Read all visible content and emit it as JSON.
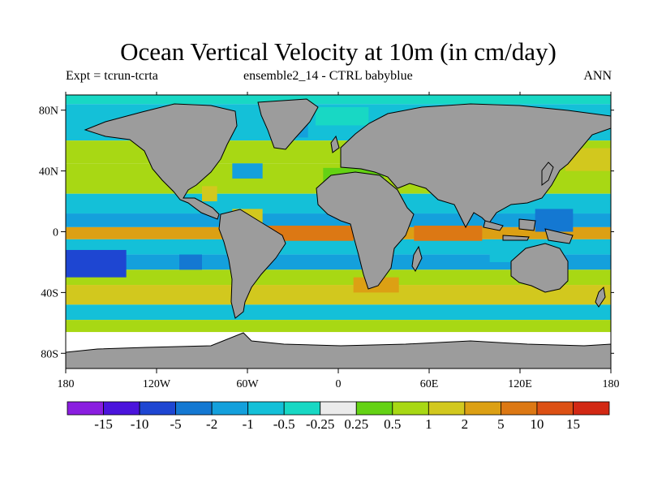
{
  "header": {
    "title": "Ocean Vertical Velocity at 10m (in cm/day)",
    "left_label": "Expt = tcrun-tcrta",
    "center_label": "ensemble2_14 - CTRL babyblue",
    "right_label": "ANN"
  },
  "chart_data": {
    "type": "heatmap",
    "title": "Ocean Vertical Velocity at 10m (in cm/day)",
    "projection": "cylindrical-equidistant",
    "lon_range": [
      -180,
      180
    ],
    "lat_range": [
      -90,
      90
    ],
    "x_ticks": [
      {
        "value": -180,
        "label": "180"
      },
      {
        "value": -120,
        "label": "120W"
      },
      {
        "value": -60,
        "label": "60W"
      },
      {
        "value": 0,
        "label": "0"
      },
      {
        "value": 60,
        "label": "60E"
      },
      {
        "value": 120,
        "label": "120E"
      },
      {
        "value": 180,
        "label": "180"
      }
    ],
    "y_ticks": [
      {
        "value": 80,
        "label": "80N"
      },
      {
        "value": 40,
        "label": "40N"
      },
      {
        "value": 0,
        "label": "0"
      },
      {
        "value": -40,
        "label": "40S"
      },
      {
        "value": -80,
        "label": "80S"
      }
    ],
    "land_color": "#9c9c9c",
    "colorbar": {
      "boundaries": [
        -15,
        -10,
        -5,
        -2,
        -1,
        -0.5,
        -0.25,
        0.25,
        0.5,
        1,
        2,
        5,
        10,
        15
      ],
      "labels": [
        "-15",
        "-10",
        "-5",
        "-2",
        "-1",
        "-0.5",
        "-0.25",
        "0.25",
        "0.5",
        "1",
        "2",
        "5",
        "10",
        "15"
      ],
      "colors": [
        "#8a1ee0",
        "#4b14dc",
        "#1e46d2",
        "#1478d2",
        "#14a0dc",
        "#14c0d8",
        "#18d8c4",
        "#ebebeb",
        "#64d214",
        "#a8d814",
        "#d2c81e",
        "#dca014",
        "#dc7814",
        "#dc5014",
        "#d22814"
      ]
    },
    "field_bands": [
      {
        "lat": [
          84,
          90
        ],
        "lon": [
          -180,
          180
        ],
        "value": -0.4
      },
      {
        "lat": [
          60,
          84
        ],
        "lon": [
          -180,
          180
        ],
        "value": -0.8
      },
      {
        "lat": [
          45,
          60
        ],
        "lon": [
          -180,
          180
        ],
        "value": 0.7
      },
      {
        "lat": [
          25,
          45
        ],
        "lon": [
          -180,
          180
        ],
        "value": 0.6
      },
      {
        "lat": [
          12,
          25
        ],
        "lon": [
          -180,
          180
        ],
        "value": -0.6
      },
      {
        "lat": [
          3,
          12
        ],
        "lon": [
          -180,
          180
        ],
        "value": -1.5
      },
      {
        "lat": [
          -5,
          3
        ],
        "lon": [
          -180,
          180
        ],
        "value": 3
      },
      {
        "lat": [
          -15,
          -5
        ],
        "lon": [
          -180,
          180
        ],
        "value": -0.8
      },
      {
        "lat": [
          -25,
          -15
        ],
        "lon": [
          -180,
          180
        ],
        "value": -2
      },
      {
        "lat": [
          -35,
          -25
        ],
        "lon": [
          -180,
          180
        ],
        "value": 0.8
      },
      {
        "lat": [
          -48,
          -35
        ],
        "lon": [
          -180,
          180
        ],
        "value": 1.5
      },
      {
        "lat": [
          -58,
          -48
        ],
        "lon": [
          -180,
          180
        ],
        "value": -0.8
      },
      {
        "lat": [
          -66,
          -58
        ],
        "lon": [
          -180,
          180
        ],
        "value": 0.8
      }
    ],
    "field_patches": [
      {
        "lat": [
          -30,
          -12
        ],
        "lon": [
          -180,
          -140
        ],
        "value": -8
      },
      {
        "lat": [
          -25,
          -15
        ],
        "lon": [
          -105,
          -90
        ],
        "value": -3
      },
      {
        "lat": [
          -6,
          4
        ],
        "lon": [
          -50,
          10
        ],
        "value": 6
      },
      {
        "lat": [
          -6,
          4
        ],
        "lon": [
          50,
          95
        ],
        "value": 5
      },
      {
        "lat": [
          0,
          15
        ],
        "lon": [
          130,
          155
        ],
        "value": -4
      },
      {
        "lat": [
          5,
          15
        ],
        "lon": [
          -70,
          -50
        ],
        "value": 1.5
      },
      {
        "lat": [
          32,
          42
        ],
        "lon": [
          -10,
          30
        ],
        "value": 0.4
      },
      {
        "lat": [
          20,
          30
        ],
        "lon": [
          -90,
          -80
        ],
        "value": 1.2
      },
      {
        "lat": [
          35,
          45
        ],
        "lon": [
          -70,
          -50
        ],
        "value": -1.2
      },
      {
        "lat": [
          62,
          80
        ],
        "lon": [
          -40,
          -20
        ],
        "value": -2
      },
      {
        "lat": [
          70,
          82
        ],
        "lon": [
          -15,
          20
        ],
        "value": -0.4
      },
      {
        "lat": [
          -40,
          -30
        ],
        "lon": [
          10,
          40
        ],
        "value": 2.5
      },
      {
        "lat": [
          40,
          55
        ],
        "lon": [
          150,
          180
        ],
        "value": 1.5
      },
      {
        "lat": [
          -20,
          -10
        ],
        "lon": [
          100,
          130
        ],
        "value": -0.8
      }
    ]
  }
}
